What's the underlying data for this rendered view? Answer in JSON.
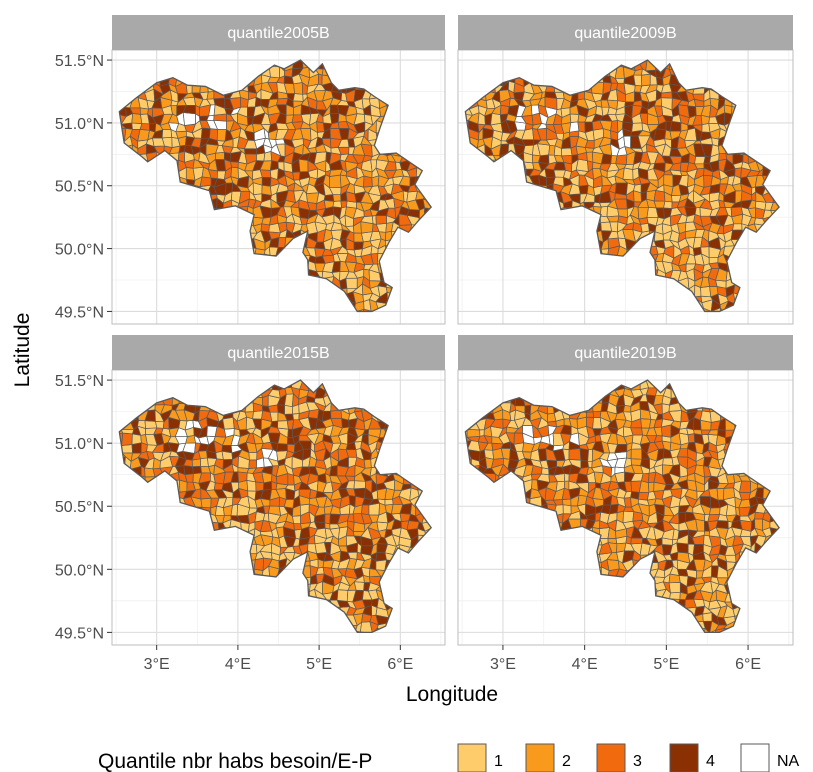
{
  "figure": {
    "panels": [
      {
        "title": "quantile2005B",
        "seed": 11
      },
      {
        "title": "quantile2009B",
        "seed": 23
      },
      {
        "title": "quantile2015B",
        "seed": 37
      },
      {
        "title": "quantile2019B",
        "seed": 59
      }
    ],
    "x_ticks": [
      {
        "value": 3,
        "label": "3°E"
      },
      {
        "value": 4,
        "label": "4°E"
      },
      {
        "value": 5,
        "label": "5°E"
      },
      {
        "value": 6,
        "label": "6°E"
      }
    ],
    "y_ticks": [
      {
        "value": 51.5,
        "label": "51.5°N"
      },
      {
        "value": 51.0,
        "label": "51.0°N"
      },
      {
        "value": 50.5,
        "label": "50.5°N"
      },
      {
        "value": 50.0,
        "label": "50.0°N"
      },
      {
        "value": 49.5,
        "label": "49.5°N"
      }
    ],
    "xlabel": "Longitude",
    "ylabel": "Latitude",
    "lon_range": [
      2.45,
      6.55
    ],
    "lat_range": [
      49.4,
      51.58
    ],
    "border_color": "#595959",
    "legend": {
      "title": "Quantile nbr habs besoin/E-P",
      "items": [
        {
          "label": "1",
          "color": "#FECC6B"
        },
        {
          "label": "2",
          "color": "#F99A1C"
        },
        {
          "label": "3",
          "color": "#F16A0E"
        },
        {
          "label": "4",
          "color": "#8B3003"
        },
        {
          "label": "NA",
          "color": "#FFFFFF"
        }
      ]
    },
    "outline": [
      [
        2.54,
        51.09
      ],
      [
        2.75,
        51.2
      ],
      [
        3.0,
        51.32
      ],
      [
        3.2,
        51.36
      ],
      [
        3.38,
        51.3
      ],
      [
        3.6,
        51.29
      ],
      [
        3.82,
        51.22
      ],
      [
        4.05,
        51.26
      ],
      [
        4.25,
        51.37
      ],
      [
        4.45,
        51.46
      ],
      [
        4.57,
        51.43
      ],
      [
        4.77,
        51.5
      ],
      [
        4.93,
        51.4
      ],
      [
        5.04,
        51.47
      ],
      [
        5.15,
        51.32
      ],
      [
        5.24,
        51.26
      ],
      [
        5.44,
        51.28
      ],
      [
        5.55,
        51.27
      ],
      [
        5.68,
        51.21
      ],
      [
        5.85,
        51.14
      ],
      [
        5.75,
        50.96
      ],
      [
        5.68,
        50.82
      ],
      [
        5.75,
        50.75
      ],
      [
        5.95,
        50.76
      ],
      [
        6.04,
        50.72
      ],
      [
        6.27,
        50.62
      ],
      [
        6.18,
        50.51
      ],
      [
        6.38,
        50.33
      ],
      [
        6.22,
        50.22
      ],
      [
        6.1,
        50.13
      ],
      [
        5.97,
        50.17
      ],
      [
        5.86,
        50.05
      ],
      [
        5.74,
        49.9
      ],
      [
        5.8,
        49.73
      ],
      [
        5.9,
        49.69
      ],
      [
        5.82,
        49.55
      ],
      [
        5.65,
        49.5
      ],
      [
        5.47,
        49.5
      ],
      [
        5.31,
        49.66
      ],
      [
        5.09,
        49.76
      ],
      [
        4.87,
        49.79
      ],
      [
        4.86,
        49.91
      ],
      [
        4.8,
        49.97
      ],
      [
        4.86,
        50.14
      ],
      [
        4.68,
        50.08
      ],
      [
        4.47,
        49.94
      ],
      [
        4.2,
        49.96
      ],
      [
        4.15,
        50.14
      ],
      [
        4.2,
        50.27
      ],
      [
        3.97,
        50.34
      ],
      [
        3.71,
        50.31
      ],
      [
        3.65,
        50.46
      ],
      [
        3.29,
        50.53
      ],
      [
        3.25,
        50.7
      ],
      [
        3.1,
        50.78
      ],
      [
        2.89,
        50.69
      ],
      [
        2.82,
        50.73
      ],
      [
        2.6,
        50.84
      ],
      [
        2.54,
        51.09
      ]
    ]
  }
}
